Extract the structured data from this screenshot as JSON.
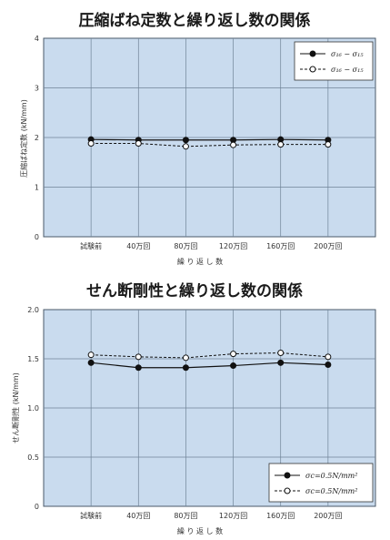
{
  "chart_data": [
    {
      "type": "line",
      "title": "圧縮ばね定数と繰り返し数の関係",
      "xlabel": "繰 り 返 し 数",
      "ylabel": "圧縮ばね定数 (kN/mm)",
      "categories": [
        "試験前",
        "40万回",
        "80万回",
        "120万回",
        "160万回",
        "200万回"
      ],
      "ylim": [
        0,
        4
      ],
      "yticks": [
        "0",
        "1",
        "2",
        "3",
        "4"
      ],
      "grid": true,
      "legend_position": "top-right",
      "background": "#c9dbee",
      "series": [
        {
          "name": "σ₁₆ − σ₁₅",
          "style": "solid-filled",
          "values": [
            1.96,
            1.95,
            1.95,
            1.95,
            1.96,
            1.95
          ]
        },
        {
          "name": "σ₁₆ − σ₁₅",
          "style": "dashed-open",
          "values": [
            1.88,
            1.88,
            1.82,
            1.85,
            1.86,
            1.86
          ]
        }
      ]
    },
    {
      "type": "line",
      "title": "せん断剛性と繰り返し数の関係",
      "xlabel": "繰 り 返 し 数",
      "ylabel": "せん断剛性 (kN/mm)",
      "categories": [
        "試験前",
        "40万回",
        "80万回",
        "120万回",
        "160万回",
        "200万回"
      ],
      "ylim": [
        0,
        2
      ],
      "yticks": [
        "0",
        "0.5",
        "1.0",
        "1.5",
        "2.0"
      ],
      "grid": true,
      "legend_position": "bottom-right",
      "background": "#c9dbee",
      "series": [
        {
          "name": "σc=0.5N/mm²",
          "style": "solid-filled",
          "values": [
            1.46,
            1.41,
            1.41,
            1.43,
            1.46,
            1.44
          ]
        },
        {
          "name": "σc=0.5N/mm²",
          "style": "dashed-open",
          "values": [
            1.54,
            1.52,
            1.51,
            1.55,
            1.56,
            1.52
          ]
        }
      ]
    }
  ]
}
